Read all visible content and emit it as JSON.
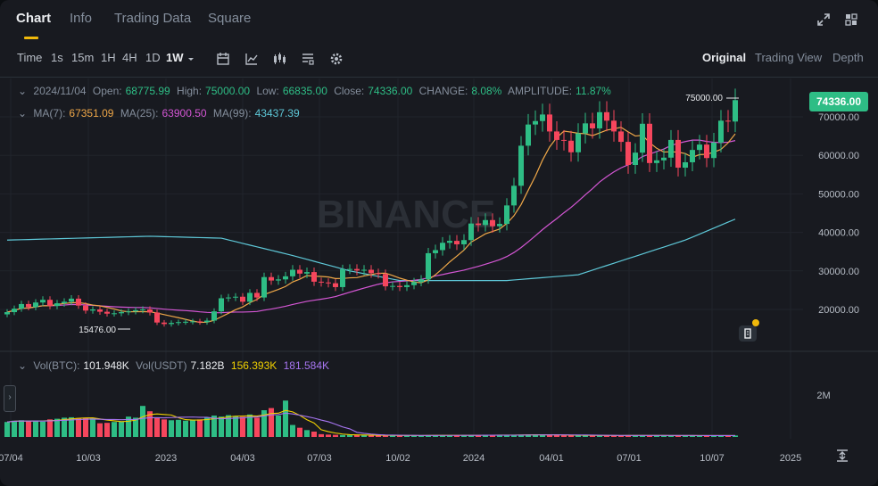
{
  "tabs": [
    "Chart",
    "Info",
    "Trading Data",
    "Square"
  ],
  "intervals": [
    "Time",
    "1s",
    "15m",
    "1H",
    "4H",
    "1D",
    "1W"
  ],
  "active_interval": "1W",
  "views": [
    "Original",
    "Trading View",
    "Depth"
  ],
  "colors": {
    "up": "#2ebd85",
    "down": "#f6465d",
    "ma7": "#f0a848",
    "ma25": "#d456d4",
    "ma99": "#5ec8d8",
    "accent": "#f0b90b"
  },
  "ohlc": {
    "date": "2024/11/04",
    "open_label": "Open:",
    "open": "68775.99",
    "high_label": "High:",
    "high": "75000.00",
    "low_label": "Low:",
    "low": "66835.00",
    "close_label": "Close:",
    "close": "74336.00",
    "change_label": "CHANGE:",
    "change": "8.08%",
    "amplitude_label": "AMPLITUDE:",
    "amplitude": "11.87%"
  },
  "ma": {
    "ma7_label": "MA(7):",
    "ma7": "67351.09",
    "ma25_label": "MA(25):",
    "ma25": "63900.50",
    "ma99_label": "MA(99):",
    "ma99": "43437.39"
  },
  "volume": {
    "btc_label": "Vol(BTC):",
    "btc": "101.948K",
    "usdt_label": "Vol(USDT)",
    "usdt": "7.182B",
    "ma1": "156.393K",
    "ma2": "181.584K",
    "axis_label": "2M"
  },
  "watermark": "BINANCE",
  "current_price": "74336.00",
  "high_marker": "75000.00",
  "low_marker": "15476.00",
  "chart_data": {
    "type": "candlestick",
    "x_tick_labels": [
      "07/04",
      "10/03",
      "2023",
      "04/03",
      "07/03",
      "10/02",
      "2024",
      "04/01",
      "07/01",
      "10/07",
      "2025"
    ],
    "y_tick_labels": [
      "70000.00",
      "60000.00",
      "50000.00",
      "40000.00",
      "30000.00",
      "20000.00"
    ],
    "y_ticks": [
      70000,
      60000,
      50000,
      40000,
      30000,
      20000
    ],
    "closes": [
      19300,
      20200,
      21400,
      20600,
      21800,
      22500,
      20900,
      21600,
      22000,
      22800,
      21000,
      19700,
      20000,
      19400,
      18900,
      19000,
      19300,
      19500,
      19800,
      20000,
      19200,
      16600,
      16200,
      16500,
      16700,
      16800,
      16900,
      16700,
      17100,
      19500,
      22900,
      23100,
      23300,
      22000,
      24300,
      23100,
      28400,
      27500,
      27800,
      28600,
      30300,
      29300,
      29700,
      27200,
      27000,
      26800,
      25800,
      30400,
      30500,
      30100,
      30300,
      29400,
      29200,
      26000,
      26100,
      25800,
      26300,
      27100,
      27800,
      34600,
      35400,
      37300,
      37800,
      36900,
      38000,
      42300,
      41900,
      43200,
      41600,
      42200,
      47000,
      52100,
      62500,
      68000,
      68900,
      70600,
      66200,
      64000,
      63800,
      60800,
      65700,
      68300,
      67000,
      71200,
      69000,
      66200,
      63500,
      57500,
      60700,
      68200,
      58000,
      58700,
      59400,
      64000,
      56800,
      58200,
      61400,
      62800,
      59300,
      63300,
      69000,
      68775,
      74336
    ],
    "volumes": [
      700000,
      760000,
      780000,
      730000,
      760000,
      720000,
      820000,
      850000,
      900000,
      920000,
      880000,
      900000,
      870000,
      640000,
      660000,
      700000,
      720000,
      950000,
      900000,
      1450000,
      1200000,
      880000,
      820000,
      780000,
      800000,
      760000,
      780000,
      820000,
      900000,
      1000000,
      950000,
      1020000,
      980000,
      940000,
      1050000,
      900000,
      1250000,
      1350000,
      1000000,
      1700000,
      560000,
      430000,
      320000,
      250000,
      130000,
      110000,
      100000,
      90000,
      95000,
      85000,
      80000,
      75000,
      70000,
      72000,
      68000,
      66000,
      70000,
      65000,
      70000,
      85000,
      80000,
      78000,
      75000,
      72000,
      78000,
      85000,
      80000,
      90000,
      85000,
      80000,
      95000,
      90000,
      100000,
      110000,
      120000,
      95000,
      90000,
      85000,
      80000,
      75000,
      70000,
      72000,
      68000,
      70000,
      65000,
      66000,
      70000,
      75000,
      80000,
      72000,
      68000,
      66000,
      64000,
      62000,
      66000,
      68000,
      70000,
      62000,
      60000,
      66000,
      70000,
      72000,
      68000
    ],
    "ma99_keypoints": [
      [
        0,
        38000
      ],
      [
        20,
        39000
      ],
      [
        30,
        38500
      ],
      [
        40,
        34000
      ],
      [
        48,
        30000
      ],
      [
        55,
        27500
      ],
      [
        70,
        27500
      ],
      [
        80,
        29000
      ],
      [
        95,
        38000
      ],
      [
        102,
        43437.39
      ]
    ],
    "ma7_last": 67351.09,
    "ma25_last": 63900.5,
    "ma99_last": 43437.39
  }
}
